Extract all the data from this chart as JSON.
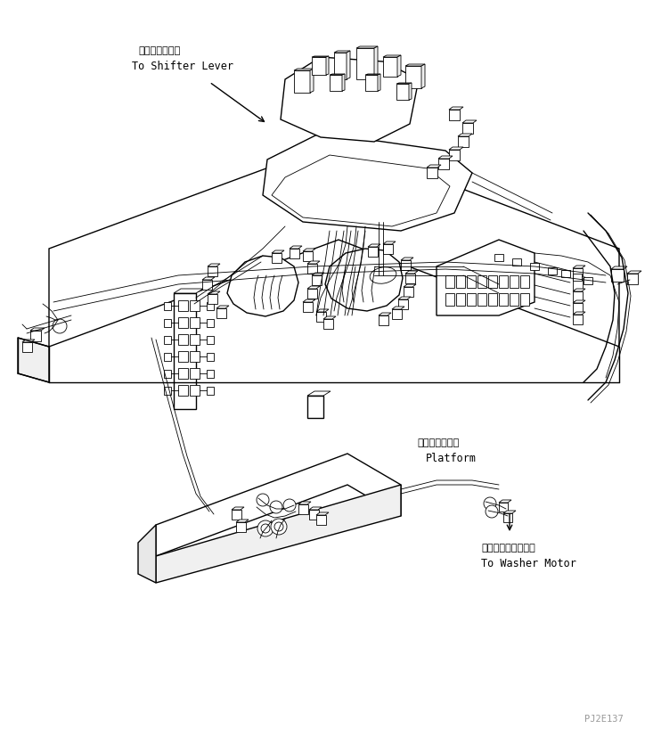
{
  "background_color": "#ffffff",
  "line_color": "#000000",
  "lw_main": 1.0,
  "lw_thin": 0.6,
  "annotation_shifter_jp": "シフタレバーへ",
  "annotation_shifter_en": "To Shifter Lever",
  "annotation_platform_jp": "プラットホーム",
  "annotation_platform_en": "Platform",
  "annotation_washer_jp": "ウォッシャモータへ",
  "annotation_washer_en": "To Washer Motor",
  "watermark": "PJ2E137"
}
